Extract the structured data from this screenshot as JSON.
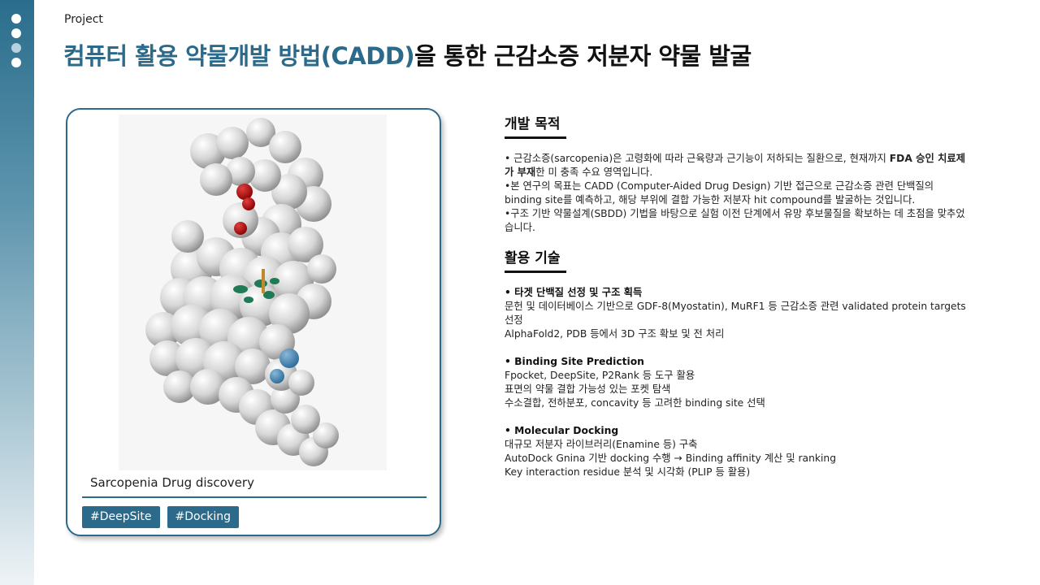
{
  "header": {
    "project_label": "Project",
    "title_accent": "컴퓨터 활용 약물개발 방법(CADD)",
    "title_rest": "을 통한 근감소증 저분자 약물 발굴"
  },
  "card": {
    "caption": "Sarcopenia Drug discovery",
    "tags": [
      "#DeepSite",
      "#Docking"
    ]
  },
  "purpose": {
    "heading": "개발 목적",
    "line1_pre": "• 근감소증(sarcopenia)은 고령화에 따라 근육량과 근기능이 저하되는 질환으로, 현재까지 ",
    "line1_bold": "FDA 승인 치료제가 부재",
    "line1_post": "한 미 충족 수요 영역입니다.",
    "line2": "•본 연구의 목표는 CADD (Computer-Aided Drug Design) 기반 접근으로 근감소증 관련 단백질의 binding site를 예측하고, 해당 부위에 결합 가능한 저분자 hit compound를 발굴하는 것입니다.",
    "line3": "•구조 기반 약물설계(SBDD) 기법을 바탕으로 실험 이전 단계에서 유망 후보물질을 확보하는 데 초점을 맞추었습니다."
  },
  "tech": {
    "heading": "활용 기술",
    "s1_title": "• 타겟 단백질 선정 및 구조 획득",
    "s1_l1": "문헌 및 데이터베이스 기반으로 GDF-8(Myostatin), MuRF1 등 근감소증 관련 validated protein targets 선정",
    "s1_l2": "AlphaFold2, PDB 등에서 3D 구조 확보 및 전 처리",
    "s2_title": "• Binding Site Prediction",
    "s2_l1": "Fpocket, DeepSite, P2Rank 등 도구 활용",
    "s2_l2": "표면의 약물 결합 가능성 있는 포켓 탐색",
    "s2_l3": "수소결합, 전하분포, concavity 등 고려한 binding site 선택",
    "s3_title": "• Molecular Docking",
    "s3_l1": "대규모 저분자 라이브러리(Enamine 등) 구축",
    "s3_l2": "AutoDock Gnina 기반 docking 수행 → Binding affinity 계산 및 ranking",
    "s3_l3": "Key interaction residue 분석 및 시각화 (PLIP 등 활용)"
  }
}
